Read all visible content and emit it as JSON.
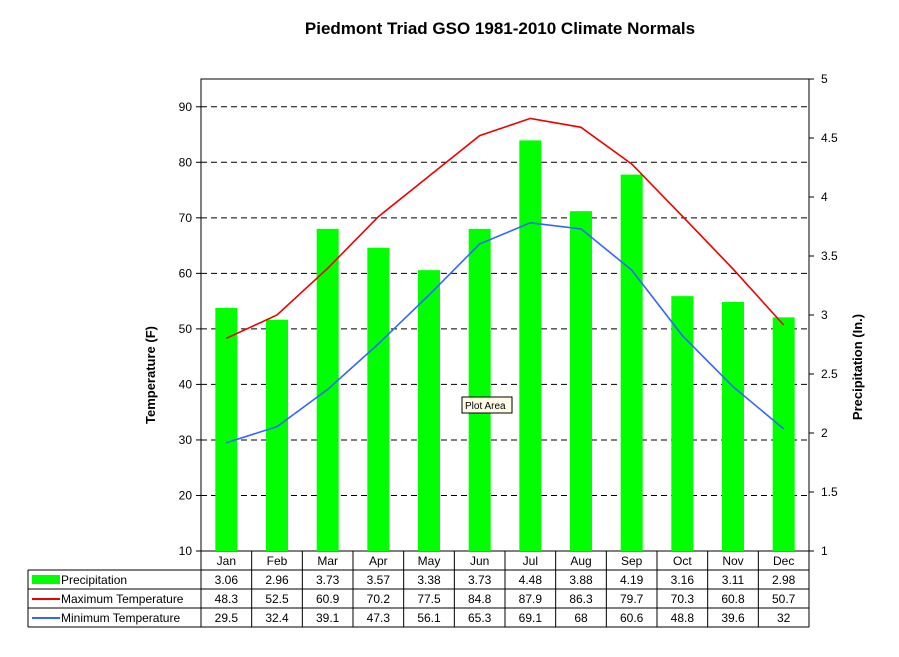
{
  "chart_data": {
    "type": "bar",
    "title": "Piedmont Triad GSO 1981-2010 Climate Normals",
    "categories": [
      "Jan",
      "Feb",
      "Mar",
      "Apr",
      "May",
      "Jun",
      "Jul",
      "Aug",
      "Sep",
      "Oct",
      "Nov",
      "Dec"
    ],
    "ylabel_left": "Temperature  (F)",
    "ylabel_right": "Precipitation  (In.)",
    "ylim_left": [
      10,
      95
    ],
    "ylim_right": [
      1,
      5
    ],
    "yticks_left": [
      "10",
      "20",
      "30",
      "40",
      "50",
      "60",
      "70",
      "80",
      "90"
    ],
    "yticks_right": [
      "1",
      "1.5",
      "2",
      "2.5",
      "3",
      "3.5",
      "4",
      "4.5",
      "5"
    ],
    "grid": "horizontal dashed",
    "legend": "data table below chart",
    "series": [
      {
        "name": "Precipitation",
        "type": "bar",
        "axis": "right",
        "color": "#00ff00",
        "values": [
          3.06,
          2.96,
          3.73,
          3.57,
          3.38,
          3.73,
          4.48,
          3.88,
          4.19,
          3.16,
          3.11,
          2.98
        ],
        "labels": [
          "3.06",
          "2.96",
          "3.73",
          "3.57",
          "3.38",
          "3.73",
          "4.48",
          "3.88",
          "4.19",
          "3.16",
          "3.11",
          "2.98"
        ]
      },
      {
        "name": "Maximum Temperature",
        "type": "line",
        "axis": "left",
        "color": "#ee0000",
        "values": [
          48.3,
          52.5,
          60.9,
          70.2,
          77.5,
          84.8,
          87.9,
          86.3,
          79.7,
          70.3,
          60.8,
          50.7
        ],
        "labels": [
          "48.3",
          "52.5",
          "60.9",
          "70.2",
          "77.5",
          "84.8",
          "87.9",
          "86.3",
          "79.7",
          "70.3",
          "60.8",
          "50.7"
        ]
      },
      {
        "name": "Minimum Temperature",
        "type": "line",
        "axis": "left",
        "color": "#3366ff",
        "values": [
          29.5,
          32.4,
          39.1,
          47.3,
          56.1,
          65.3,
          69.1,
          68,
          60.6,
          48.8,
          39.6,
          32
        ],
        "labels": [
          "29.5",
          "32.4",
          "39.1",
          "47.3",
          "56.1",
          "65.3",
          "69.1",
          "68",
          "60.6",
          "48.8",
          "39.6",
          "32"
        ]
      }
    ],
    "tooltip": "Plot Area"
  }
}
